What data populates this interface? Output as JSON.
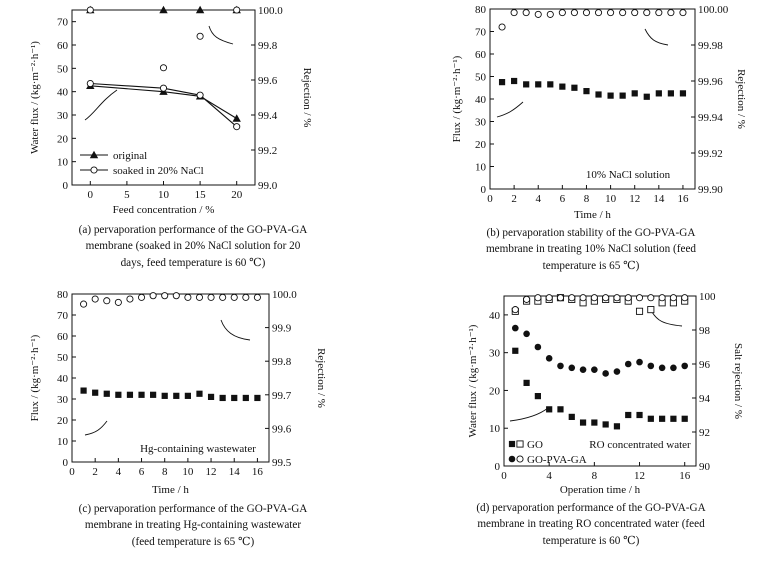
{
  "chart_data": [
    {
      "type": "line",
      "xlabel": "Feed concentration / %",
      "ylabel": "Water flux / (kg·m⁻²·h⁻¹)",
      "y2label": "Rejection / %",
      "xlim": [
        -2.5,
        22.5
      ],
      "ylim": [
        0,
        75
      ],
      "y2lim": [
        99.0,
        100.0
      ],
      "xticks": [
        0,
        5,
        10,
        15,
        20
      ],
      "yticks": [
        0,
        10,
        20,
        30,
        40,
        50,
        60,
        70
      ],
      "y2ticks": [
        "99.0",
        "99.2",
        "99.4",
        "99.6",
        "99.8",
        "100.0"
      ],
      "x": [
        0,
        10,
        15,
        20
      ],
      "series": [
        {
          "name": "original",
          "axis": "left",
          "marker": "filled-triangle",
          "line": true,
          "values": [
            42.5,
            40,
            38,
            28.5
          ]
        },
        {
          "name": "soaked in 20% NaCl",
          "axis": "left",
          "marker": "open-circle",
          "line": true,
          "values": [
            43.5,
            41.5,
            38.5,
            25
          ]
        },
        {
          "name": "original",
          "axis": "right",
          "marker": "filled-triangle",
          "line": false,
          "values": [
            100.0,
            100.0,
            100.0,
            100.0
          ]
        },
        {
          "name": "soaked in 20% NaCl",
          "axis": "right",
          "marker": "open-circle",
          "line": false,
          "values": [
            100.0,
            99.67,
            99.85,
            100.0
          ]
        }
      ],
      "legend": [
        "original",
        "soaked in 20% NaCl"
      ],
      "legend_position": "bottom-left",
      "caption": [
        "(a) pervaporation performance of the GO-PVA-GA",
        "membrane (soaked in 20% NaCl solution for 20",
        "days, feed temperature is 60  ℃)"
      ]
    },
    {
      "type": "scatter",
      "xlabel": "Time / h",
      "ylabel": "Flux / (kg·m⁻²·h⁻¹)",
      "y2label": "Rejection / %",
      "xlim": [
        0,
        17
      ],
      "ylim": [
        0,
        80
      ],
      "y2lim": [
        99.9,
        100.0
      ],
      "xticks": [
        0,
        2,
        4,
        6,
        8,
        10,
        12,
        14,
        16
      ],
      "yticks": [
        0,
        10,
        20,
        30,
        40,
        50,
        60,
        70,
        80
      ],
      "y2ticks": [
        "99.90",
        "99.92",
        "99.94",
        "99.96",
        "99.98",
        "100.00"
      ],
      "x": [
        1,
        2,
        3,
        4,
        5,
        6,
        7,
        8,
        9,
        10,
        11,
        12,
        13,
        14,
        15,
        16
      ],
      "series": [
        {
          "axis": "left",
          "marker": "filled-square",
          "values": [
            47.5,
            48,
            46.5,
            46.5,
            46.5,
            45.5,
            45,
            43.5,
            42,
            41.5,
            41.5,
            42.5,
            41,
            42.5,
            42.5,
            42.5
          ]
        },
        {
          "axis": "right",
          "marker": "open-circle",
          "values": [
            99.99,
            99.998,
            99.998,
            99.997,
            99.997,
            99.998,
            99.998,
            99.998,
            99.998,
            99.998,
            99.998,
            99.998,
            99.998,
            99.998,
            99.998,
            99.998
          ]
        }
      ],
      "annotation": "10% NaCl solution",
      "caption": [
        "(b) pervaporation stability of the GO-PVA-GA",
        "membrane in treating 10% NaCl solution (feed",
        "temperature is 65  ℃)"
      ]
    },
    {
      "type": "scatter",
      "xlabel": "Time / h",
      "ylabel": "Flux / (kg·m⁻²·h⁻¹)",
      "y2label": "Rejection / %",
      "xlim": [
        0,
        17
      ],
      "ylim": [
        0,
        80
      ],
      "y2lim": [
        99.5,
        100.0
      ],
      "xticks": [
        0,
        2,
        4,
        6,
        8,
        10,
        12,
        14,
        16
      ],
      "yticks": [
        0,
        10,
        20,
        30,
        40,
        50,
        60,
        70,
        80
      ],
      "y2ticks": [
        "99.5",
        "99.6",
        "99.7",
        "99.8",
        "99.9",
        "100.0"
      ],
      "x": [
        1,
        2,
        3,
        4,
        5,
        6,
        7,
        8,
        9,
        10,
        11,
        12,
        13,
        14,
        15,
        16
      ],
      "series": [
        {
          "axis": "left",
          "marker": "filled-square",
          "values": [
            34,
            33,
            32.5,
            32,
            32,
            32,
            32,
            31.5,
            31.5,
            31.5,
            32.5,
            31,
            30.5,
            30.5,
            30.5,
            30.5
          ]
        },
        {
          "axis": "right",
          "marker": "open-circle",
          "values": [
            99.97,
            99.985,
            99.98,
            99.975,
            99.985,
            99.99,
            99.995,
            99.995,
            99.995,
            99.99,
            99.99,
            99.99,
            99.99,
            99.99,
            99.99,
            99.99
          ]
        }
      ],
      "annotation": "Hg-containing wastewater",
      "caption": [
        "(c) pervaporation performance of the GO-PVA-GA",
        "membrane in treating Hg-containing wastewater",
        "(feed temperature is 65  ℃)"
      ]
    },
    {
      "type": "scatter",
      "xlabel": "Operation time / h",
      "ylabel": "Water flux / (kg·m⁻²·h⁻¹)",
      "y2label": "Salt rejection / %",
      "xlim": [
        0,
        17
      ],
      "ylim": [
        0,
        45
      ],
      "y2lim": [
        90,
        100
      ],
      "xticks": [
        0,
        4,
        8,
        12,
        16
      ],
      "yticks": [
        0,
        10,
        20,
        30,
        40
      ],
      "y2ticks": [
        "90",
        "92",
        "94",
        "96",
        "98",
        "100"
      ],
      "x": [
        1,
        2,
        3,
        4,
        5,
        6,
        7,
        8,
        9,
        10,
        11,
        12,
        13,
        14,
        15,
        16
      ],
      "series": [
        {
          "name": "GO",
          "axis": "left",
          "marker": "filled-square",
          "values": [
            30.5,
            22,
            18.5,
            15,
            15,
            13,
            11.5,
            11.5,
            11,
            10.5,
            13.5,
            13.5,
            12.5,
            12.5,
            12.5,
            12.5
          ]
        },
        {
          "name": "GO",
          "axis": "right",
          "marker": "open-square",
          "values": [
            99.1,
            99.7,
            99.7,
            99.8,
            99.9,
            99.8,
            99.6,
            99.7,
            99.8,
            99.8,
            99.7,
            99.1,
            99.2,
            99.6,
            99.6,
            99.7
          ]
        },
        {
          "name": "GO-PVA-GA",
          "axis": "left",
          "marker": "filled-circle",
          "values": [
            36.5,
            35,
            31.5,
            28.5,
            26.5,
            26,
            25.5,
            25.5,
            24.5,
            25,
            27,
            27.5,
            26.5,
            26,
            26,
            26.5
          ]
        },
        {
          "name": "GO-PVA-GA",
          "axis": "right",
          "marker": "open-circle",
          "values": [
            99.2,
            99.8,
            99.9,
            99.9,
            99.9,
            99.9,
            99.9,
            99.9,
            99.9,
            99.9,
            99.9,
            99.9,
            99.9,
            99.9,
            99.9,
            99.9
          ]
        }
      ],
      "legend": [
        "GO",
        "GO-PVA-GA"
      ],
      "legend_position": "bottom-left",
      "annotation": "RO concentrated water",
      "caption": [
        "(d) pervaporation performance of the GO-PVA-GA",
        "membrane in treating RO concentrated water (feed",
        "temperature is 60  ℃)"
      ]
    }
  ]
}
